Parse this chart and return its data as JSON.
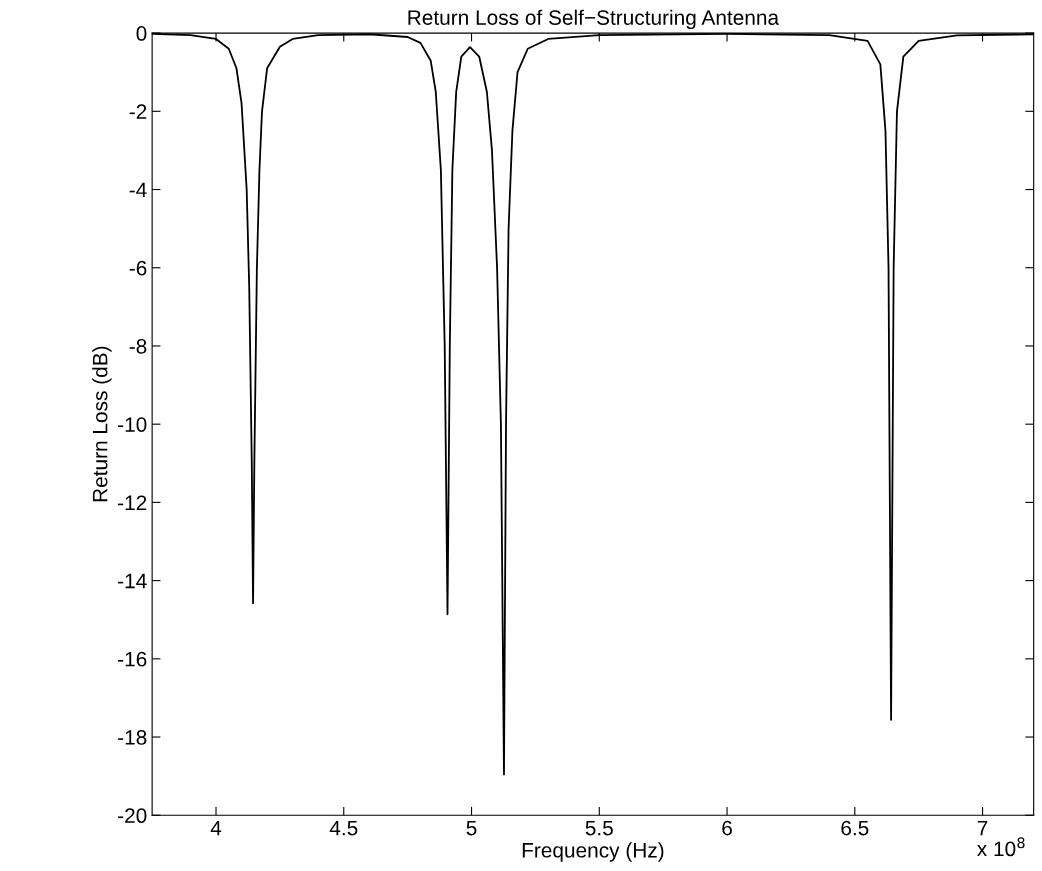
{
  "chart_data": {
    "type": "line",
    "title": "Return Loss of Self−Structuring Antenna",
    "xlabel": "Frequency (Hz)",
    "ylabel": "Return Loss (dB)",
    "annotations": [
      "x 10$^{8}$"
    ],
    "x": [
      3.75,
      3.9,
      4.0,
      4.05,
      4.08,
      4.1,
      4.12,
      4.13,
      4.14,
      4.145,
      4.15,
      4.16,
      4.17,
      4.18,
      4.2,
      4.25,
      4.3,
      4.4,
      4.6,
      4.75,
      4.8,
      4.84,
      4.86,
      4.88,
      4.895,
      4.906,
      4.915,
      4.925,
      4.94,
      4.96,
      4.994,
      5.03,
      5.06,
      5.08,
      5.1,
      5.115,
      5.127,
      5.135,
      5.145,
      5.16,
      5.18,
      5.22,
      5.3,
      5.5,
      6.0,
      6.4,
      6.55,
      6.6,
      6.62,
      6.632,
      6.642,
      6.652,
      6.665,
      6.69,
      6.75,
      6.9,
      7.2
    ],
    "series": [
      {
        "color": "#000000",
        "values": [
          -0.02,
          -0.05,
          -0.15,
          -0.4,
          -0.9,
          -1.8,
          -4,
          -6.5,
          -11,
          -14.58,
          -11,
          -6,
          -3.5,
          -2,
          -0.9,
          -0.35,
          -0.15,
          -0.05,
          -0.03,
          -0.1,
          -0.25,
          -0.7,
          -1.5,
          -3.5,
          -8,
          -14.86,
          -8,
          -3.5,
          -1.5,
          -0.6,
          -0.36,
          -0.6,
          -1.5,
          -3,
          -6,
          -10,
          -18.96,
          -10,
          -5,
          -2.5,
          -1,
          -0.4,
          -0.15,
          -0.05,
          -0.02,
          -0.05,
          -0.2,
          -0.8,
          -2.5,
          -6,
          -17.56,
          -6,
          -2,
          -0.6,
          -0.2,
          -0.06,
          -0.03
        ]
      }
    ],
    "xlim": [
      3.75,
      7.2
    ],
    "xticks": [
      4,
      4.5,
      5,
      5.5,
      6,
      6.5,
      7
    ],
    "ylim": [
      -20,
      0
    ],
    "yticks": [
      -20,
      -18,
      -16,
      -14,
      -12,
      -10,
      -8,
      -6,
      -4,
      -2,
      0
    ],
    "marker": "none",
    "line_style": "solid"
  }
}
